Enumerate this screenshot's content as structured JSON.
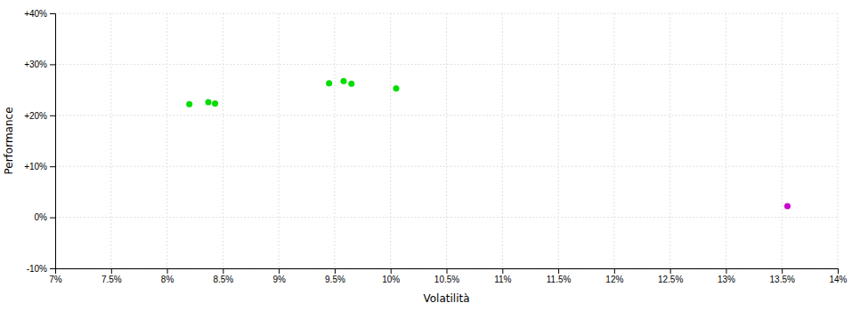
{
  "chart_data": {
    "type": "scatter",
    "xlabel": "Volatilità",
    "ylabel": "Performance",
    "xlim": [
      0.07,
      0.14
    ],
    "ylim": [
      -0.1,
      0.4
    ],
    "grid": true,
    "xticks": [
      {
        "value": 0.07,
        "label": "7%"
      },
      {
        "value": 0.075,
        "label": "7.5%"
      },
      {
        "value": 0.08,
        "label": "8%"
      },
      {
        "value": 0.085,
        "label": "8.5%"
      },
      {
        "value": 0.09,
        "label": "9%"
      },
      {
        "value": 0.095,
        "label": "9.5%"
      },
      {
        "value": 0.1,
        "label": "10%"
      },
      {
        "value": 0.105,
        "label": "10.5%"
      },
      {
        "value": 0.11,
        "label": "11%"
      },
      {
        "value": 0.115,
        "label": "11.5%"
      },
      {
        "value": 0.12,
        "label": "12%"
      },
      {
        "value": 0.125,
        "label": "12.5%"
      },
      {
        "value": 0.13,
        "label": "13%"
      },
      {
        "value": 0.135,
        "label": "13.5%"
      },
      {
        "value": 0.14,
        "label": "14%"
      }
    ],
    "yticks": [
      {
        "value": -0.1,
        "label": "-10%"
      },
      {
        "value": 0.0,
        "label": "0%"
      },
      {
        "value": 0.1,
        "label": "+10%"
      },
      {
        "value": 0.2,
        "label": "+20%"
      },
      {
        "value": 0.3,
        "label": "+30%"
      },
      {
        "value": 0.4,
        "label": "+40%"
      }
    ],
    "series": [
      {
        "color": "#00dd00",
        "marker": "circle",
        "x": [
          0.082,
          0.0837,
          0.0843,
          0.0945,
          0.0958,
          0.0965,
          0.1005
        ],
        "values": [
          0.222,
          0.226,
          0.223,
          0.263,
          0.267,
          0.262,
          0.253
        ]
      },
      {
        "color": "#cc00cc",
        "marker": "circle",
        "x": [
          0.1355
        ],
        "values": [
          0.022
        ]
      }
    ]
  }
}
